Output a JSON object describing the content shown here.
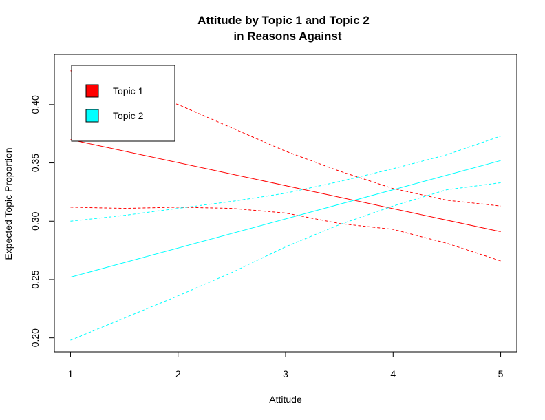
{
  "chart_data": {
    "type": "line",
    "title_line1": "Attitude by Topic 1 and Topic 2",
    "title_line2": "in Reasons Against",
    "xlabel": "Attitude",
    "ylabel": "Expected Topic Proportion",
    "xlim": [
      0.85,
      5.15
    ],
    "ylim": [
      0.188,
      0.443
    ],
    "x_ticks": [
      1,
      2,
      3,
      4,
      5
    ],
    "x_tick_labels": [
      "1",
      "2",
      "3",
      "4",
      "5"
    ],
    "y_ticks": [
      0.2,
      0.25,
      0.3,
      0.35,
      0.4
    ],
    "y_tick_labels": [
      "0.20",
      "0.25",
      "0.30",
      "0.35",
      "0.40"
    ],
    "legend": {
      "position": "top-left",
      "entries": [
        {
          "label": "Topic 1",
          "color": "#ff0000"
        },
        {
          "label": "Topic 2",
          "color": "#00ffff"
        }
      ]
    },
    "series": [
      {
        "name": "Topic 1",
        "color": "#ff0000",
        "style": "solid",
        "x": [
          1,
          5
        ],
        "y": [
          0.37,
          0.291
        ]
      },
      {
        "color": "#ff0000",
        "style": "dashed",
        "x": [
          1,
          1.5,
          2,
          2.5,
          3,
          3.5,
          4,
          4.5,
          5
        ],
        "y": [
          0.429,
          0.415,
          0.4,
          0.38,
          0.36,
          0.343,
          0.328,
          0.318,
          0.313
        ]
      },
      {
        "color": "#ff0000",
        "style": "dashed",
        "x": [
          1,
          1.5,
          2,
          2.5,
          3,
          3.5,
          4,
          4.5,
          5
        ],
        "y": [
          0.312,
          0.311,
          0.312,
          0.311,
          0.307,
          0.298,
          0.293,
          0.281,
          0.266
        ]
      },
      {
        "name": "Topic 2",
        "color": "#00ffff",
        "style": "solid",
        "x": [
          1,
          5
        ],
        "y": [
          0.252,
          0.352
        ]
      },
      {
        "color": "#00ffff",
        "style": "dashed",
        "x": [
          1,
          1.5,
          2,
          2.5,
          3,
          3.5,
          4,
          4.5,
          5
        ],
        "y": [
          0.3,
          0.305,
          0.311,
          0.317,
          0.324,
          0.334,
          0.345,
          0.357,
          0.373
        ]
      },
      {
        "color": "#00ffff",
        "style": "dashed",
        "x": [
          1,
          1.5,
          2,
          2.5,
          3,
          3.5,
          4,
          4.5,
          5
        ],
        "y": [
          0.198,
          0.217,
          0.236,
          0.256,
          0.278,
          0.297,
          0.313,
          0.327,
          0.333
        ]
      }
    ]
  }
}
